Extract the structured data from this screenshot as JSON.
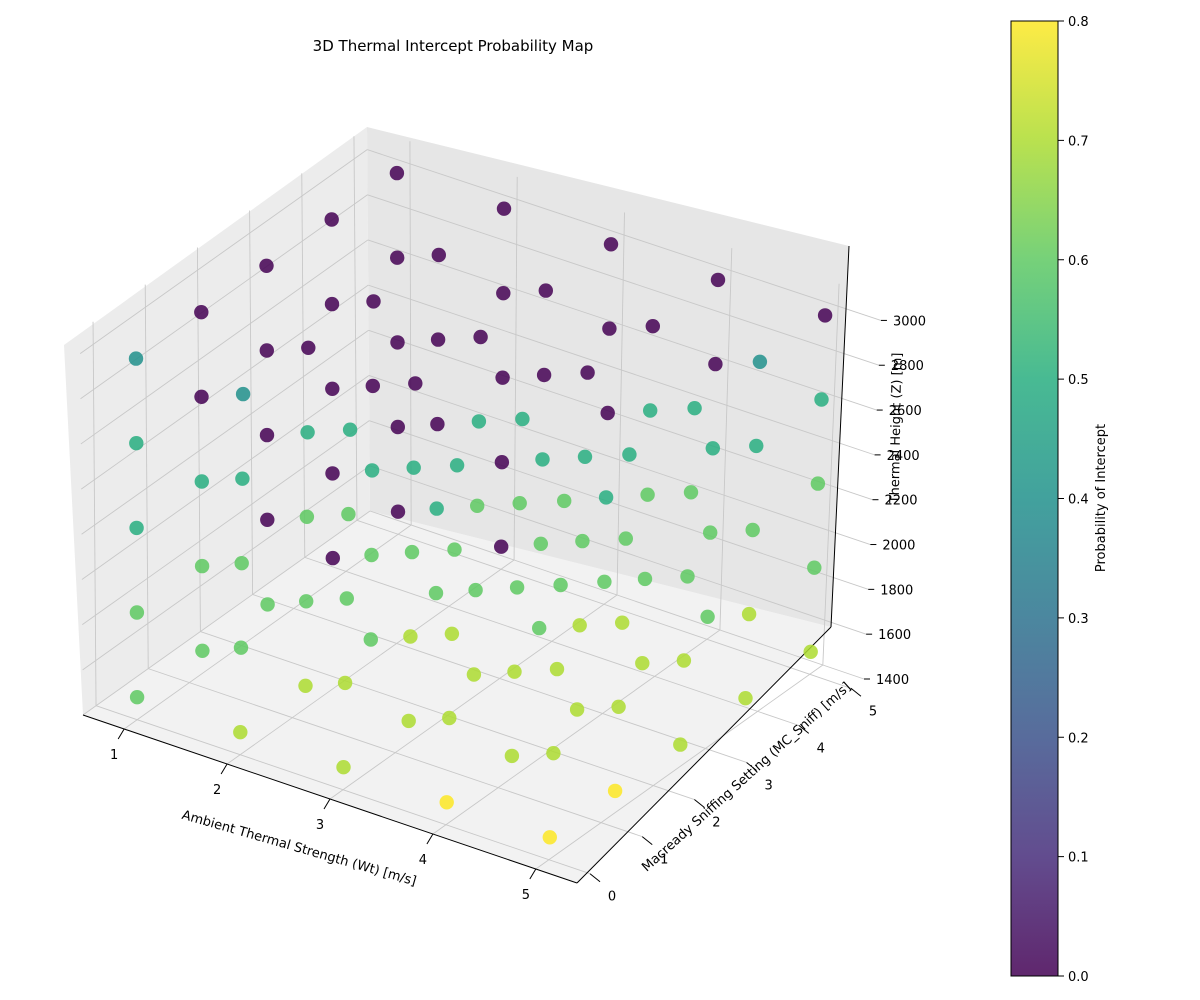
{
  "chart_data": {
    "type": "scatter",
    "title": "3D Thermal Intercept Probability Map",
    "xlabel": "Ambient Thermal Strength (Wt) [m/s]",
    "ylabel": "Macready Sniffing Setting (MC_Sniff) [m/s]",
    "zlabel": "Thermal Height (Z) [m]",
    "colorbar_label": "Probability of Intercept",
    "colormap": "viridis",
    "xlim": [
      0.6,
      5.4
    ],
    "ylim": [
      -0.25,
      5.25
    ],
    "zlim": [
      1400,
      3100
    ],
    "clim": [
      0,
      0.8
    ],
    "x_ticks": [
      "1",
      "2",
      "3",
      "4",
      "5"
    ],
    "y_ticks": [
      "0",
      "1",
      "2",
      "3",
      "4",
      "5"
    ],
    "z_ticks": [
      "1400",
      "1600",
      "1800",
      "2000",
      "2200",
      "2400",
      "2600",
      "2800",
      "3000"
    ],
    "colorbar_ticks": [
      "0.0",
      "0.1",
      "0.2",
      "0.3",
      "0.4",
      "0.5",
      "0.6",
      "0.7",
      "0.8"
    ],
    "grid": true,
    "x_values": [
      1,
      2,
      3,
      4,
      5
    ],
    "y_values": [
      0,
      1.25,
      2.5,
      3.75,
      5
    ],
    "z_values": [
      1500,
      1875,
      2250,
      2625,
      3000
    ],
    "probability_grid_note": "",
    "probability": [
      [
        [
          0.6,
          0.6,
          0.5,
          0.5,
          0.4
        ],
        [
          0.6,
          0.6,
          0.5,
          0.0,
          0.0
        ],
        [
          0.6,
          0.0,
          0.0,
          0.0,
          0.0
        ],
        [
          0.0,
          0.0,
          0.0,
          0.0,
          0.0
        ],
        [
          0.0,
          0.0,
          0.0,
          0.0,
          0.0
        ]
      ],
      [
        [
          0.7,
          0.6,
          0.6,
          0.5,
          0.4
        ],
        [
          0.7,
          0.6,
          0.6,
          0.5,
          0.0
        ],
        [
          0.6,
          0.6,
          0.5,
          0.0,
          0.0
        ],
        [
          0.6,
          0.5,
          0.0,
          0.0,
          0.0
        ],
        [
          0.0,
          0.0,
          0.0,
          0.0,
          0.0
        ]
      ],
      [
        [
          0.7,
          0.7,
          0.6,
          0.6,
          0.5
        ],
        [
          0.7,
          0.7,
          0.6,
          0.5,
          0.0
        ],
        [
          0.7,
          0.6,
          0.6,
          0.5,
          0.0
        ],
        [
          0.6,
          0.6,
          0.5,
          0.0,
          0.0
        ],
        [
          0.6,
          0.5,
          0.0,
          0.0,
          0.0
        ]
      ],
      [
        [
          0.8,
          0.7,
          0.7,
          0.6,
          0.5
        ],
        [
          0.7,
          0.7,
          0.6,
          0.6,
          0.5
        ],
        [
          0.7,
          0.7,
          0.6,
          0.5,
          0.0
        ],
        [
          0.7,
          0.6,
          0.6,
          0.5,
          0.0
        ],
        [
          0.6,
          0.6,
          0.5,
          0.0,
          0.0
        ]
      ],
      [
        [
          0.8,
          0.7,
          0.7,
          0.6,
          0.6
        ],
        [
          0.8,
          0.7,
          0.7,
          0.6,
          0.5
        ],
        [
          0.7,
          0.7,
          0.6,
          0.6,
          0.5
        ],
        [
          0.7,
          0.7,
          0.6,
          0.5,
          0.4
        ],
        [
          0.7,
          0.6,
          0.6,
          0.5,
          0.0
        ]
      ]
    ]
  }
}
